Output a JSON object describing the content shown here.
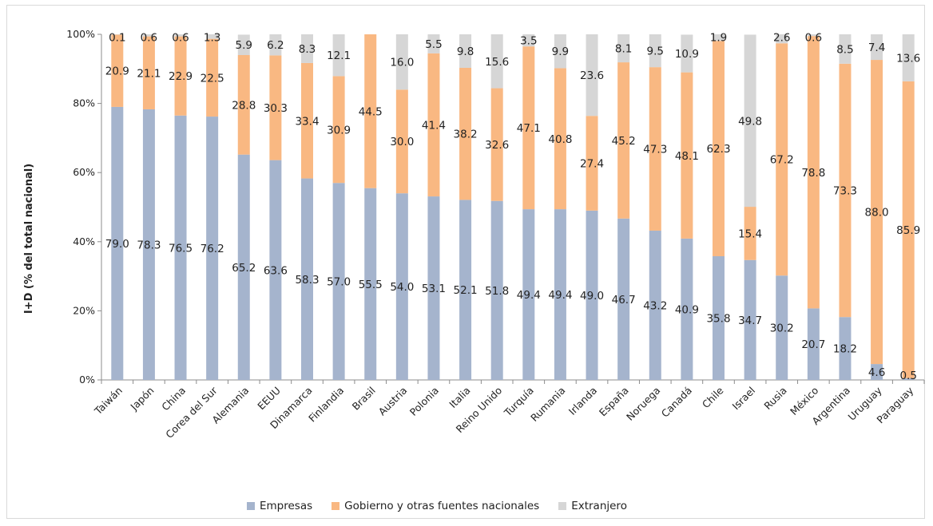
{
  "chart_data": {
    "type": "bar",
    "stacked": true,
    "title": "",
    "xlabel": "",
    "ylabel": "I+D (% del total nacional)",
    "ylim": [
      0,
      100
    ],
    "yticks": [
      "0%",
      "20%",
      "40%",
      "60%",
      "80%",
      "100%"
    ],
    "legend_position": "bottom",
    "grid": false,
    "categories": [
      "Taiwán",
      "Japón",
      "China",
      "Corea del Sur",
      "Alemania",
      "EEUU",
      "Dinamarca",
      "Finlandia",
      "Brasil",
      "Austria",
      "Polonia",
      "Italia",
      "Reino Unido",
      "Turquía",
      "Rumania",
      "Irlanda",
      "España",
      "Noruega",
      "Canadá",
      "Chile",
      "Israel",
      "Rusia",
      "México",
      "Argentina",
      "Uruguay",
      "Paraguay"
    ],
    "series": [
      {
        "name": "Empresas",
        "color": "#a5b4cd",
        "values": [
          79.0,
          78.3,
          76.5,
          76.2,
          65.2,
          63.6,
          58.3,
          57.0,
          55.5,
          54.0,
          53.1,
          52.1,
          51.8,
          49.4,
          49.4,
          49.0,
          46.7,
          43.2,
          40.9,
          35.8,
          34.7,
          30.2,
          20.7,
          18.2,
          4.6,
          0.5
        ]
      },
      {
        "name": "Gobierno y otras fuentes nacionales",
        "color": "#f9b882",
        "values": [
          20.9,
          21.1,
          22.9,
          22.5,
          28.8,
          30.3,
          33.4,
          30.9,
          44.5,
          30.0,
          41.4,
          38.2,
          32.6,
          47.1,
          40.8,
          27.4,
          45.2,
          47.3,
          48.1,
          62.3,
          15.4,
          67.2,
          78.8,
          73.3,
          88.0,
          85.9
        ]
      },
      {
        "name": "Extranjero",
        "color": "#d6d6d6",
        "values": [
          0.1,
          0.6,
          0.6,
          1.3,
          5.9,
          6.2,
          8.3,
          12.1,
          null,
          16.0,
          5.5,
          9.8,
          15.6,
          3.5,
          9.9,
          23.6,
          8.1,
          9.5,
          10.9,
          1.9,
          49.8,
          2.6,
          0.6,
          8.5,
          7.4,
          13.6
        ]
      }
    ]
  }
}
